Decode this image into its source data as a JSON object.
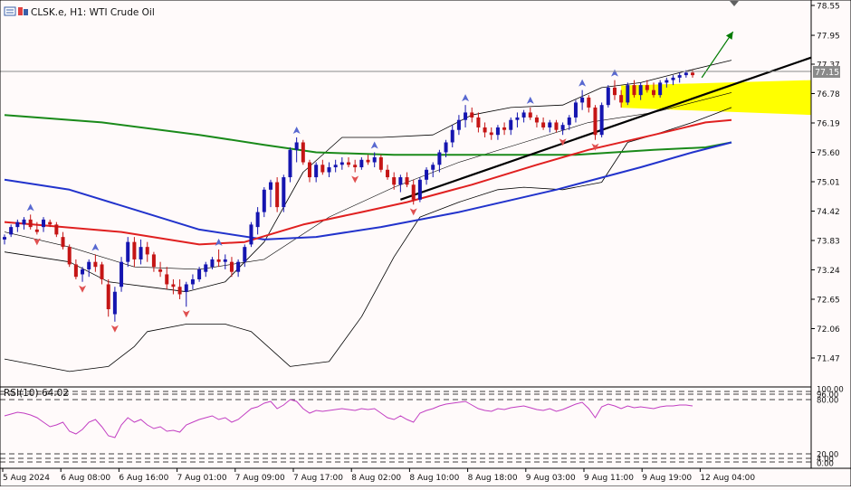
{
  "header": {
    "symbol_label": "CLSK.e, H1:  WTI Crude Oil"
  },
  "rsi_label": "RSI(10) 64.02",
  "price_axis": {
    "ticks": [
      "78.55",
      "77.95",
      "77.37",
      "76.78",
      "76.19",
      "75.60",
      "75.01",
      "74.42",
      "73.83",
      "73.24",
      "72.65",
      "72.06",
      "71.47"
    ],
    "current_price": "77.15"
  },
  "rsi_axis": {
    "ticks": [
      "100.00",
      "96.00",
      "80.00",
      "20.00",
      "4.00",
      "0.00"
    ]
  },
  "time_axis": {
    "labels": [
      "5 Aug 2024",
      "6 Aug 08:00",
      "6 Aug 16:00",
      "7 Aug 01:00",
      "7 Aug 09:00",
      "7 Aug 17:00",
      "8 Aug 02:00",
      "8 Aug 10:00",
      "8 Aug 18:00",
      "9 Aug 03:00",
      "9 Aug 11:00",
      "9 Aug 19:00",
      "12 Aug 04:00"
    ]
  },
  "colors": {
    "bull": "#1515b0",
    "bear": "#c51515",
    "ma_fast": "#e02020",
    "ma_mid": "#2233cc",
    "ma_slow": "#1a8a1a",
    "bollinger": "#000000",
    "rsi": "#c23ec2",
    "zone": "#ffff00",
    "arrow": "#007a00"
  },
  "chart_data": {
    "type": "candlestick",
    "ylim": [
      71.0,
      78.7
    ],
    "rsi_levels": [
      80,
      20
    ],
    "candles": [
      [
        73.85,
        73.95,
        73.75,
        73.9
      ],
      [
        73.95,
        74.15,
        73.9,
        74.1
      ],
      [
        74.1,
        74.25,
        74.0,
        74.2
      ],
      [
        74.15,
        74.3,
        74.05,
        74.25
      ],
      [
        74.25,
        74.35,
        74.05,
        74.1
      ],
      [
        74.05,
        74.2,
        73.95,
        74.0
      ],
      [
        74.1,
        74.3,
        74.0,
        74.25
      ],
      [
        74.2,
        74.25,
        74.1,
        74.15
      ],
      [
        74.15,
        74.2,
        73.9,
        73.95
      ],
      [
        73.9,
        74.0,
        73.65,
        73.7
      ],
      [
        73.7,
        73.75,
        73.3,
        73.35
      ],
      [
        73.35,
        73.45,
        73.05,
        73.1
      ],
      [
        73.15,
        73.3,
        73.0,
        73.25
      ],
      [
        73.25,
        73.45,
        73.1,
        73.4
      ],
      [
        73.4,
        73.55,
        73.2,
        73.3
      ],
      [
        73.35,
        73.4,
        72.95,
        73.05
      ],
      [
        72.95,
        73.05,
        72.3,
        72.45
      ],
      [
        72.35,
        72.9,
        72.2,
        72.8
      ],
      [
        72.9,
        73.5,
        72.8,
        73.4
      ],
      [
        73.4,
        73.9,
        73.3,
        73.8
      ],
      [
        73.8,
        73.9,
        73.3,
        73.45
      ],
      [
        73.45,
        73.85,
        73.35,
        73.7
      ],
      [
        73.7,
        73.8,
        73.4,
        73.55
      ],
      [
        73.55,
        73.6,
        73.2,
        73.3
      ],
      [
        73.25,
        73.4,
        73.1,
        73.2
      ],
      [
        73.15,
        73.3,
        72.85,
        72.95
      ],
      [
        72.95,
        73.05,
        72.75,
        72.9
      ],
      [
        72.9,
        73.05,
        72.65,
        72.75
      ],
      [
        72.8,
        73.0,
        72.5,
        72.95
      ],
      [
        72.95,
        73.15,
        72.85,
        73.05
      ],
      [
        73.05,
        73.3,
        73.0,
        73.25
      ],
      [
        73.2,
        73.4,
        73.1,
        73.35
      ],
      [
        73.3,
        73.5,
        73.25,
        73.45
      ],
      [
        73.45,
        73.65,
        73.3,
        73.4
      ],
      [
        73.4,
        73.55,
        73.25,
        73.45
      ],
      [
        73.4,
        73.5,
        73.1,
        73.2
      ],
      [
        73.2,
        73.45,
        73.1,
        73.4
      ],
      [
        73.4,
        73.75,
        73.3,
        73.7
      ],
      [
        73.75,
        74.2,
        73.7,
        74.15
      ],
      [
        74.1,
        74.5,
        73.95,
        74.4
      ],
      [
        74.4,
        74.9,
        74.3,
        74.85
      ],
      [
        74.85,
        75.05,
        74.5,
        75.0
      ],
      [
        75.0,
        75.1,
        74.4,
        74.5
      ],
      [
        74.5,
        75.15,
        74.4,
        75.1
      ],
      [
        75.1,
        75.7,
        75.0,
        75.65
      ],
      [
        75.65,
        75.9,
        75.4,
        75.8
      ],
      [
        75.8,
        75.85,
        75.35,
        75.4
      ],
      [
        75.4,
        75.45,
        75.0,
        75.1
      ],
      [
        75.1,
        75.4,
        75.0,
        75.35
      ],
      [
        75.35,
        75.45,
        75.15,
        75.2
      ],
      [
        75.2,
        75.4,
        75.1,
        75.3
      ],
      [
        75.3,
        75.45,
        75.2,
        75.35
      ],
      [
        75.35,
        75.5,
        75.25,
        75.4
      ],
      [
        75.4,
        75.5,
        75.3,
        75.35
      ],
      [
        75.35,
        75.45,
        75.2,
        75.3
      ],
      [
        75.3,
        75.5,
        75.25,
        75.45
      ],
      [
        75.45,
        75.55,
        75.35,
        75.4
      ],
      [
        75.4,
        75.6,
        75.3,
        75.5
      ],
      [
        75.5,
        75.55,
        75.2,
        75.25
      ],
      [
        75.25,
        75.35,
        75.05,
        75.1
      ],
      [
        75.1,
        75.2,
        74.85,
        74.95
      ],
      [
        74.95,
        75.15,
        74.8,
        75.1
      ],
      [
        75.1,
        75.2,
        74.9,
        74.95
      ],
      [
        74.95,
        75.05,
        74.55,
        74.65
      ],
      [
        74.65,
        75.1,
        74.6,
        75.05
      ],
      [
        75.05,
        75.3,
        74.95,
        75.25
      ],
      [
        75.25,
        75.4,
        75.1,
        75.35
      ],
      [
        75.35,
        75.65,
        75.2,
        75.6
      ],
      [
        75.6,
        75.85,
        75.5,
        75.8
      ],
      [
        75.8,
        76.15,
        75.7,
        76.05
      ],
      [
        76.05,
        76.35,
        75.95,
        76.25
      ],
      [
        76.25,
        76.55,
        76.1,
        76.4
      ],
      [
        76.4,
        76.5,
        76.2,
        76.3
      ],
      [
        76.3,
        76.4,
        76.0,
        76.1
      ],
      [
        76.1,
        76.2,
        75.9,
        76.0
      ],
      [
        76.0,
        76.1,
        75.85,
        75.95
      ],
      [
        75.95,
        76.15,
        75.85,
        76.1
      ],
      [
        76.1,
        76.2,
        75.95,
        76.05
      ],
      [
        76.05,
        76.3,
        75.95,
        76.25
      ],
      [
        76.25,
        76.4,
        76.1,
        76.3
      ],
      [
        76.3,
        76.45,
        76.2,
        76.4
      ],
      [
        76.4,
        76.5,
        76.25,
        76.3
      ],
      [
        76.3,
        76.35,
        76.1,
        76.2
      ],
      [
        76.2,
        76.3,
        76.05,
        76.1
      ],
      [
        76.1,
        76.25,
        76.0,
        76.2
      ],
      [
        76.2,
        76.25,
        76.0,
        76.05
      ],
      [
        76.05,
        76.2,
        75.95,
        76.15
      ],
      [
        76.15,
        76.35,
        76.05,
        76.3
      ],
      [
        76.3,
        76.65,
        76.2,
        76.6
      ],
      [
        76.6,
        76.85,
        76.45,
        76.7
      ],
      [
        76.7,
        76.75,
        76.4,
        76.5
      ],
      [
        76.5,
        76.55,
        75.85,
        75.95
      ],
      [
        75.95,
        76.6,
        75.9,
        76.55
      ],
      [
        76.55,
        76.95,
        76.5,
        76.9
      ],
      [
        76.9,
        77.05,
        76.65,
        76.75
      ],
      [
        76.75,
        76.85,
        76.5,
        76.6
      ],
      [
        76.6,
        77.0,
        76.55,
        76.95
      ],
      [
        76.95,
        77.05,
        76.7,
        76.75
      ],
      [
        76.75,
        77.0,
        76.65,
        76.95
      ],
      [
        76.95,
        77.05,
        76.8,
        76.85
      ],
      [
        76.85,
        77.0,
        76.7,
        76.75
      ],
      [
        76.75,
        77.05,
        76.7,
        77.0
      ],
      [
        77.0,
        77.1,
        76.9,
        77.05
      ],
      [
        77.05,
        77.15,
        76.95,
        77.1
      ],
      [
        77.1,
        77.2,
        77.0,
        77.15
      ],
      [
        77.15,
        77.25,
        77.1,
        77.2
      ],
      [
        77.2,
        77.25,
        77.1,
        77.15
      ]
    ],
    "ma_fast": [
      [
        0,
        74.2
      ],
      [
        18,
        74.0
      ],
      [
        30,
        73.75
      ],
      [
        37,
        73.8
      ],
      [
        46,
        74.15
      ],
      [
        55,
        74.4
      ],
      [
        62,
        74.6
      ],
      [
        72,
        74.95
      ],
      [
        82,
        75.35
      ],
      [
        90,
        75.65
      ],
      [
        100,
        75.95
      ],
      [
        108,
        76.2
      ],
      [
        112,
        76.25
      ]
    ],
    "ma_mid": [
      [
        0,
        75.05
      ],
      [
        10,
        74.85
      ],
      [
        20,
        74.45
      ],
      [
        30,
        74.05
      ],
      [
        40,
        73.85
      ],
      [
        48,
        73.9
      ],
      [
        58,
        74.1
      ],
      [
        70,
        74.4
      ],
      [
        85,
        74.85
      ],
      [
        98,
        75.3
      ],
      [
        106,
        75.6
      ],
      [
        112,
        75.8
      ]
    ],
    "ma_slow": [
      [
        0,
        76.35
      ],
      [
        15,
        76.2
      ],
      [
        30,
        75.95
      ],
      [
        40,
        75.75
      ],
      [
        48,
        75.6
      ],
      [
        60,
        75.55
      ],
      [
        72,
        75.55
      ],
      [
        88,
        75.55
      ],
      [
        100,
        75.65
      ],
      [
        108,
        75.7
      ],
      [
        112,
        75.8
      ]
    ],
    "boll_upper": [
      [
        0,
        73.6
      ],
      [
        10,
        73.4
      ],
      [
        16,
        73.0
      ],
      [
        22,
        72.9
      ],
      [
        28,
        72.8
      ],
      [
        34,
        73.0
      ],
      [
        40,
        73.8
      ],
      [
        46,
        75.2
      ],
      [
        52,
        75.9
      ],
      [
        58,
        75.9
      ],
      [
        66,
        75.95
      ],
      [
        72,
        76.35
      ],
      [
        78,
        76.5
      ],
      [
        86,
        76.55
      ],
      [
        92,
        76.9
      ],
      [
        98,
        77.0
      ],
      [
        104,
        77.2
      ],
      [
        112,
        77.45
      ]
    ],
    "boll_lower": [
      [
        0,
        71.45
      ],
      [
        10,
        71.2
      ],
      [
        16,
        71.3
      ],
      [
        20,
        71.7
      ],
      [
        22,
        72.0
      ],
      [
        28,
        72.15
      ],
      [
        34,
        72.15
      ],
      [
        38,
        72.0
      ],
      [
        44,
        71.3
      ],
      [
        50,
        71.4
      ],
      [
        55,
        72.3
      ],
      [
        60,
        73.5
      ],
      [
        64,
        74.3
      ],
      [
        70,
        74.6
      ],
      [
        76,
        74.85
      ],
      [
        80,
        74.9
      ],
      [
        86,
        74.85
      ],
      [
        92,
        75.0
      ],
      [
        96,
        75.8
      ],
      [
        100,
        75.95
      ],
      [
        106,
        76.2
      ],
      [
        112,
        76.5
      ]
    ],
    "boll_mid": [
      [
        0,
        74.0
      ],
      [
        10,
        73.7
      ],
      [
        20,
        73.3
      ],
      [
        30,
        73.25
      ],
      [
        40,
        73.45
      ],
      [
        50,
        74.3
      ],
      [
        60,
        74.9
      ],
      [
        70,
        75.4
      ],
      [
        80,
        75.8
      ],
      [
        90,
        76.2
      ],
      [
        100,
        76.4
      ],
      [
        112,
        76.8
      ]
    ],
    "rsi": [
      62,
      64,
      66,
      65,
      63,
      60,
      55,
      50,
      52,
      55,
      45,
      42,
      47,
      55,
      58,
      50,
      40,
      38,
      52,
      60,
      55,
      58,
      52,
      48,
      50,
      45,
      46,
      44,
      52,
      55,
      58,
      60,
      62,
      58,
      60,
      55,
      58,
      64,
      70,
      72,
      76,
      78,
      70,
      74,
      80,
      78,
      70,
      65,
      68,
      67,
      68,
      69,
      70,
      69,
      68,
      70,
      69,
      70,
      65,
      60,
      58,
      62,
      58,
      55,
      65,
      68,
      70,
      73,
      75,
      76,
      77,
      78,
      74,
      70,
      68,
      67,
      70,
      69,
      71,
      72,
      73,
      71,
      69,
      68,
      70,
      67,
      69,
      72,
      75,
      77,
      70,
      60,
      72,
      75,
      73,
      70,
      73,
      71,
      72,
      71,
      70,
      72,
      73,
      73,
      74,
      74,
      73
    ],
    "trendline": [
      [
        61,
        74.65
      ],
      [
        112,
        76.95
      ]
    ],
    "zone": {
      "x0": 95,
      "y_top": 77.05,
      "y_bottom": 76.75
    },
    "arrow": {
      "from": [
        107,
        77.1
      ],
      "to": [
        110,
        77.95
      ]
    }
  }
}
